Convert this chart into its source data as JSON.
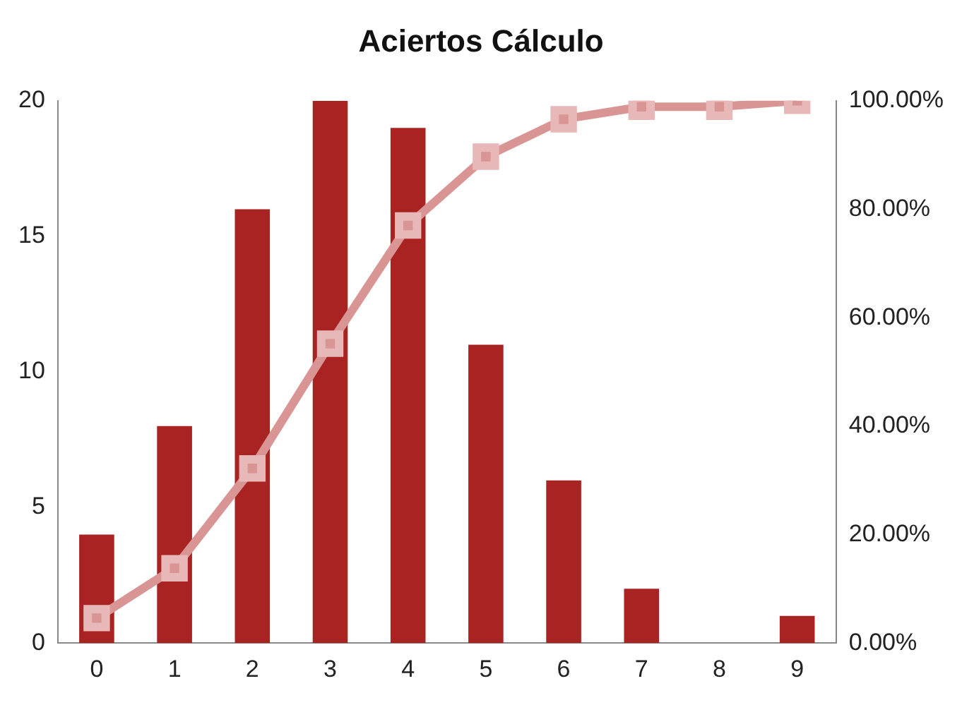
{
  "chart_data": {
    "type": "bar",
    "title": "Aciertos Cálculo",
    "categories": [
      "0",
      "1",
      "2",
      "3",
      "4",
      "5",
      "6",
      "7",
      "8",
      "9"
    ],
    "series": [
      {
        "color": "#a82321",
        "values": [
          4,
          8,
          16,
          20,
          19,
          11,
          6,
          2,
          0,
          1
        ]
      },
      {
        "type": "line",
        "axis": "y2",
        "color": "#d99594",
        "values": [
          4.6,
          13.8,
          32.2,
          55.2,
          77.0,
          89.7,
          96.6,
          98.9,
          98.9,
          100
        ]
      }
    ],
    "ylim": [
      0,
      20
    ],
    "yticks": [
      0,
      5,
      10,
      15,
      20
    ],
    "y2lim": [
      0,
      100
    ],
    "y2ticks": [
      {
        "value": 0,
        "label": "0.00%"
      },
      {
        "value": 20,
        "label": "20.00%"
      },
      {
        "value": 40,
        "label": "40.00%"
      },
      {
        "value": 60,
        "label": "60.00%"
      },
      {
        "value": 80,
        "label": "80.00%"
      },
      {
        "value": 100,
        "label": "100.00%"
      }
    ],
    "grid": false,
    "legend": false,
    "marker": "square",
    "line_style": "solid"
  }
}
